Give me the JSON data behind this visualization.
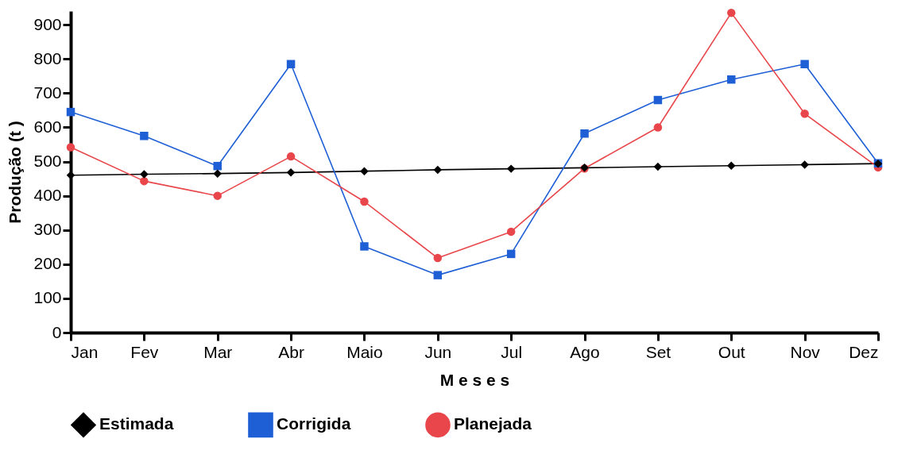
{
  "chart_data": {
    "type": "line",
    "xlabel": "M e s e s",
    "ylabel": "Produção (t )",
    "categories": [
      "Jan",
      "Fev",
      "Mar",
      "Abr",
      "Maio",
      "Jun",
      "Jul",
      "Ago",
      "Set",
      "Out",
      "Nov",
      "Dez"
    ],
    "series": [
      {
        "name": "Estimada",
        "color": "#000000",
        "marker": "diamond",
        "values": [
          460,
          463,
          465,
          468,
          472,
          476,
          479,
          482,
          485,
          488,
          491,
          494
        ]
      },
      {
        "name": "Corrigida",
        "color": "#1f5fd6",
        "marker": "square",
        "values": [
          645,
          575,
          487,
          785,
          252,
          168,
          230,
          582,
          680,
          740,
          785,
          495
        ]
      },
      {
        "name": "Planejada",
        "color": "#e8464a",
        "marker": "circle",
        "values": [
          542,
          443,
          400,
          515,
          383,
          218,
          295,
          480,
          600,
          935,
          640,
          483
        ]
      }
    ],
    "ylim": [
      0,
      940
    ],
    "yticks": [
      0,
      100,
      200,
      300,
      400,
      500,
      600,
      700,
      800,
      900
    ],
    "grid": false,
    "legend": "bottom"
  }
}
